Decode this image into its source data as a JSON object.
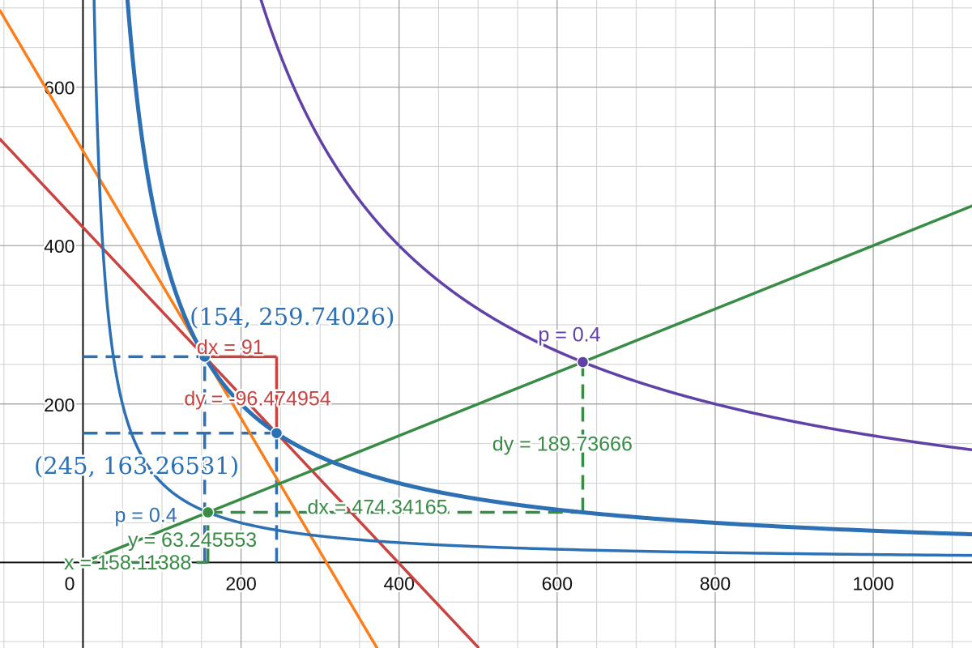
{
  "chart_data": {
    "type": "line",
    "title": "",
    "xlabel": "",
    "ylabel": "",
    "xlim": [
      -105,
      1125
    ],
    "ylim": [
      -108,
      710
    ],
    "grid": true,
    "x_ticks": [
      {
        "value": 0,
        "label": "0"
      },
      {
        "value": 200,
        "label": "200"
      },
      {
        "value": 400,
        "label": "400"
      },
      {
        "value": 600,
        "label": "600"
      },
      {
        "value": 800,
        "label": "800"
      },
      {
        "value": 1000,
        "label": "1000"
      }
    ],
    "y_ticks": [
      {
        "value": 200,
        "label": "200"
      },
      {
        "value": 400,
        "label": "400"
      },
      {
        "value": 600,
        "label": "600"
      }
    ],
    "curves": [
      {
        "id": "hyperbola-inner",
        "color": "#2d70b3",
        "k": 10000,
        "width": 3.5
      },
      {
        "id": "hyperbola-middle",
        "color": "#2d70b3",
        "k": 40000,
        "width": 5
      },
      {
        "id": "hyperbola-outer",
        "color": "#6042a6",
        "k": 160000,
        "width": 3.5
      }
    ],
    "lines": [
      {
        "id": "red-line",
        "color": "#c74440",
        "slope": -1.0602,
        "intercept": 423.0,
        "from": -105,
        "to": 500
      },
      {
        "id": "orange-line",
        "color": "#fa7e19",
        "slope": -1.6866,
        "intercept": 519.5,
        "from": -105,
        "to": 380
      },
      {
        "id": "green-line",
        "color": "#388c46",
        "slope": 0.4,
        "intercept": 0,
        "from": 0,
        "to": 1125
      }
    ],
    "guides": [
      {
        "id": "blue-guide-h-upper",
        "color": "#2d70b3",
        "x1": 0,
        "y1": 259.74026,
        "x2": 154,
        "y2": 259.74026
      },
      {
        "id": "blue-guide-h-lower",
        "color": "#2d70b3",
        "x1": 0,
        "y1": 163.26531,
        "x2": 245,
        "y2": 163.26531
      },
      {
        "id": "blue-guide-v-left",
        "color": "#2d70b3",
        "x1": 154,
        "y1": 0,
        "x2": 154,
        "y2": 259.74026
      },
      {
        "id": "blue-guide-v-right",
        "color": "#2d70b3",
        "x1": 245,
        "y1": 0,
        "x2": 245,
        "y2": 163.26531
      },
      {
        "id": "green-guide-h",
        "color": "#388c46",
        "x1": 158.11388,
        "y1": 63.245553,
        "x2": 632.45553,
        "y2": 63.245553
      },
      {
        "id": "green-guide-v-left",
        "color": "#388c46",
        "x1": 158.11388,
        "y1": 0,
        "x2": 158.11388,
        "y2": 63.245553
      },
      {
        "id": "green-guide-v-right",
        "color": "#388c46",
        "x1": 632.45553,
        "y1": 63.245553,
        "x2": 632.45553,
        "y2": 252.98221
      },
      {
        "id": "green-guide-x",
        "color": "#388c46",
        "x1": 0,
        "y1": 0,
        "x2": 158.11388,
        "y2": 0
      }
    ],
    "red_steps": [
      {
        "id": "red-step-h",
        "x1": 154,
        "y1": 259.74026,
        "x2": 245,
        "y2": 259.74026
      },
      {
        "id": "red-step-v",
        "x1": 245,
        "y1": 259.74026,
        "x2": 245,
        "y2": 163.26531
      }
    ],
    "points": [
      {
        "id": "point-154",
        "color": "#2d70b3",
        "x": 154,
        "y": 259.74026
      },
      {
        "id": "point-245",
        "color": "#2d70b3",
        "x": 245,
        "y": 163.26531
      },
      {
        "id": "point-green",
        "color": "#388c46",
        "x": 158.11388,
        "y": 63.245553
      },
      {
        "id": "point-purple",
        "color": "#6042a6",
        "x": 632.45553,
        "y": 252.98221
      }
    ],
    "annotations": [
      {
        "id": "label-coord-154",
        "text": "(154, 259.74026)",
        "color": "#2d70b3",
        "x": 135,
        "y": 300,
        "style": "coord"
      },
      {
        "id": "label-coord-245",
        "text": "(245, 163.26531)",
        "color": "#2d70b3",
        "x": -62,
        "y": 112,
        "style": "coord"
      },
      {
        "id": "label-dx-red",
        "text": "dx = 91",
        "color": "#c74440",
        "x": 144,
        "y": 263,
        "style": "ann"
      },
      {
        "id": "label-dy-red",
        "text": "dy = -96.474954",
        "color": "#c74440",
        "x": 128,
        "y": 198,
        "style": "ann"
      },
      {
        "id": "label-p-purple",
        "text": "p = 0.4",
        "color": "#6042a6",
        "x": 576,
        "y": 279,
        "style": "ann"
      },
      {
        "id": "label-dy-green",
        "text": "dy = 189.73666",
        "color": "#388c46",
        "x": 518,
        "y": 141,
        "style": "ann"
      },
      {
        "id": "label-dx-green",
        "text": "dx = 474.34165",
        "color": "#388c46",
        "x": 284,
        "y": 61,
        "style": "ann"
      },
      {
        "id": "label-p-blue",
        "text": "p = 0.4",
        "color": "#2d70b3",
        "x": 40,
        "y": 51,
        "style": "ann"
      },
      {
        "id": "label-y-green",
        "text": "y = 63.245553",
        "color": "#388c46",
        "x": 57,
        "y": 20,
        "style": "ann"
      },
      {
        "id": "label-x-green",
        "text": "x = 158.11388",
        "color": "#388c46",
        "x": -24,
        "y": -9,
        "style": "ann"
      }
    ]
  }
}
